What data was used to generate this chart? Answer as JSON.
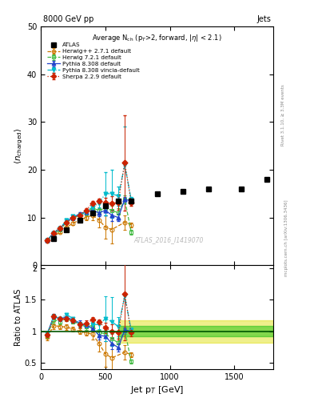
{
  "title_top_left": "8000 GeV pp",
  "title_top_right": "Jets",
  "main_title": "Average N$_{\\rm ch}$ (p$_T$>2, forward, |$\\eta$| < 2.1)",
  "watermark": "ATLAS_2016_I1419070",
  "right_label_bottom": "mcplots.cern.ch [arXiv:1306.3436]",
  "right_label_top": "Rivet 3.1.10, ≥ 3.3M events",
  "xlabel": "Jet p$_T$ [GeV]",
  "ylabel_main": "$\\langle n_{\\rm charged} \\rangle$",
  "ylabel_ratio": "Ratio to ATLAS",
  "ylim_main": [
    0,
    50
  ],
  "ylim_ratio": [
    0.4,
    2.05
  ],
  "xlim": [
    0,
    1800
  ],
  "atlas_x": [
    100,
    200,
    300,
    400,
    500,
    600,
    700,
    900,
    1100,
    1300,
    1550,
    1750
  ],
  "atlas_y": [
    5.5,
    7.5,
    9.5,
    11.0,
    12.5,
    13.5,
    13.5,
    15.0,
    15.5,
    16.0,
    16.0,
    18.0
  ],
  "herwig271_x": [
    50,
    100,
    150,
    200,
    250,
    300,
    350,
    400,
    450,
    500,
    550,
    650,
    700
  ],
  "herwig271_y": [
    5.0,
    6.0,
    7.0,
    8.0,
    8.8,
    9.5,
    10.0,
    10.5,
    9.5,
    8.0,
    7.5,
    9.0,
    8.5
  ],
  "herwig271_yerr_lo": [
    0.3,
    0.3,
    0.3,
    0.3,
    0.3,
    0.4,
    0.5,
    1.0,
    1.5,
    2.5,
    3.0,
    1.5,
    0.5
  ],
  "herwig271_yerr_hi": [
    0.3,
    0.3,
    0.3,
    0.3,
    0.3,
    0.4,
    0.5,
    1.0,
    1.5,
    2.5,
    3.0,
    1.5,
    0.5
  ],
  "herwig721_x": [
    50,
    100,
    150,
    200,
    250,
    300,
    350,
    400,
    450,
    500,
    550,
    600,
    650,
    700
  ],
  "herwig721_y": [
    5.2,
    6.5,
    7.5,
    9.0,
    9.8,
    10.5,
    11.0,
    12.0,
    11.5,
    12.0,
    11.5,
    11.0,
    13.8,
    7.0
  ],
  "herwig721_yerr_lo": [
    0.3,
    0.3,
    0.3,
    0.3,
    0.3,
    0.4,
    0.5,
    0.5,
    0.5,
    0.8,
    1.0,
    1.0,
    0.8,
    0.5
  ],
  "herwig721_yerr_hi": [
    0.3,
    0.3,
    0.3,
    0.3,
    0.3,
    0.4,
    0.5,
    0.5,
    0.5,
    0.8,
    1.0,
    1.0,
    0.8,
    0.5
  ],
  "pythia8_x": [
    50,
    100,
    150,
    200,
    250,
    300,
    350,
    400,
    450,
    500,
    550,
    600,
    650,
    700
  ],
  "pythia8_y": [
    5.3,
    6.8,
    7.8,
    9.2,
    10.0,
    10.8,
    11.2,
    11.5,
    11.0,
    11.5,
    10.5,
    10.0,
    13.8,
    13.5
  ],
  "pythia8_yerr_lo": [
    0.2,
    0.2,
    0.2,
    0.2,
    0.2,
    0.3,
    0.3,
    0.5,
    0.8,
    1.0,
    1.2,
    0.8,
    0.5,
    0.5
  ],
  "pythia8_yerr_hi": [
    0.2,
    0.2,
    0.2,
    0.2,
    0.2,
    0.3,
    0.3,
    0.5,
    0.8,
    1.0,
    1.2,
    0.8,
    0.5,
    0.5
  ],
  "pythia8v_x": [
    50,
    100,
    150,
    200,
    250,
    300,
    350,
    400,
    450,
    500,
    550,
    600,
    650,
    700
  ],
  "pythia8v_y": [
    5.3,
    6.8,
    7.8,
    9.5,
    10.2,
    10.5,
    11.2,
    12.2,
    13.0,
    15.0,
    15.0,
    14.5,
    21.0,
    13.8
  ],
  "pythia8v_yerr_lo": [
    0.2,
    0.2,
    0.2,
    0.2,
    0.2,
    0.3,
    0.3,
    0.5,
    0.8,
    4.5,
    5.0,
    2.0,
    8.0,
    0.5
  ],
  "pythia8v_yerr_hi": [
    0.2,
    0.2,
    0.2,
    0.2,
    0.2,
    0.3,
    0.3,
    0.5,
    0.8,
    4.5,
    5.0,
    2.0,
    8.0,
    0.5
  ],
  "sherpa_x": [
    50,
    100,
    150,
    200,
    250,
    300,
    350,
    400,
    450,
    500,
    550,
    600,
    650,
    700
  ],
  "sherpa_y": [
    5.2,
    6.8,
    7.8,
    9.0,
    10.0,
    10.5,
    11.5,
    13.0,
    13.5,
    13.2,
    13.0,
    13.2,
    21.5,
    13.2
  ],
  "sherpa_yerr_lo": [
    0.2,
    0.2,
    0.2,
    0.3,
    0.3,
    0.4,
    0.5,
    0.5,
    0.5,
    1.0,
    1.5,
    1.5,
    10.0,
    0.8
  ],
  "sherpa_yerr_hi": [
    0.2,
    0.2,
    0.2,
    0.3,
    0.3,
    0.4,
    0.5,
    0.5,
    0.5,
    1.0,
    1.5,
    1.5,
    10.0,
    0.8
  ],
  "atlas_color": "black",
  "herwig271_color": "#cc7700",
  "herwig721_color": "#44bb44",
  "pythia8_color": "#2244cc",
  "pythia8v_color": "#00bbcc",
  "sherpa_color": "#cc2200",
  "band_start_x": 600,
  "green_band_lo": 0.92,
  "green_band_hi": 1.08,
  "yellow_band_lo": 0.82,
  "yellow_band_hi": 1.18
}
